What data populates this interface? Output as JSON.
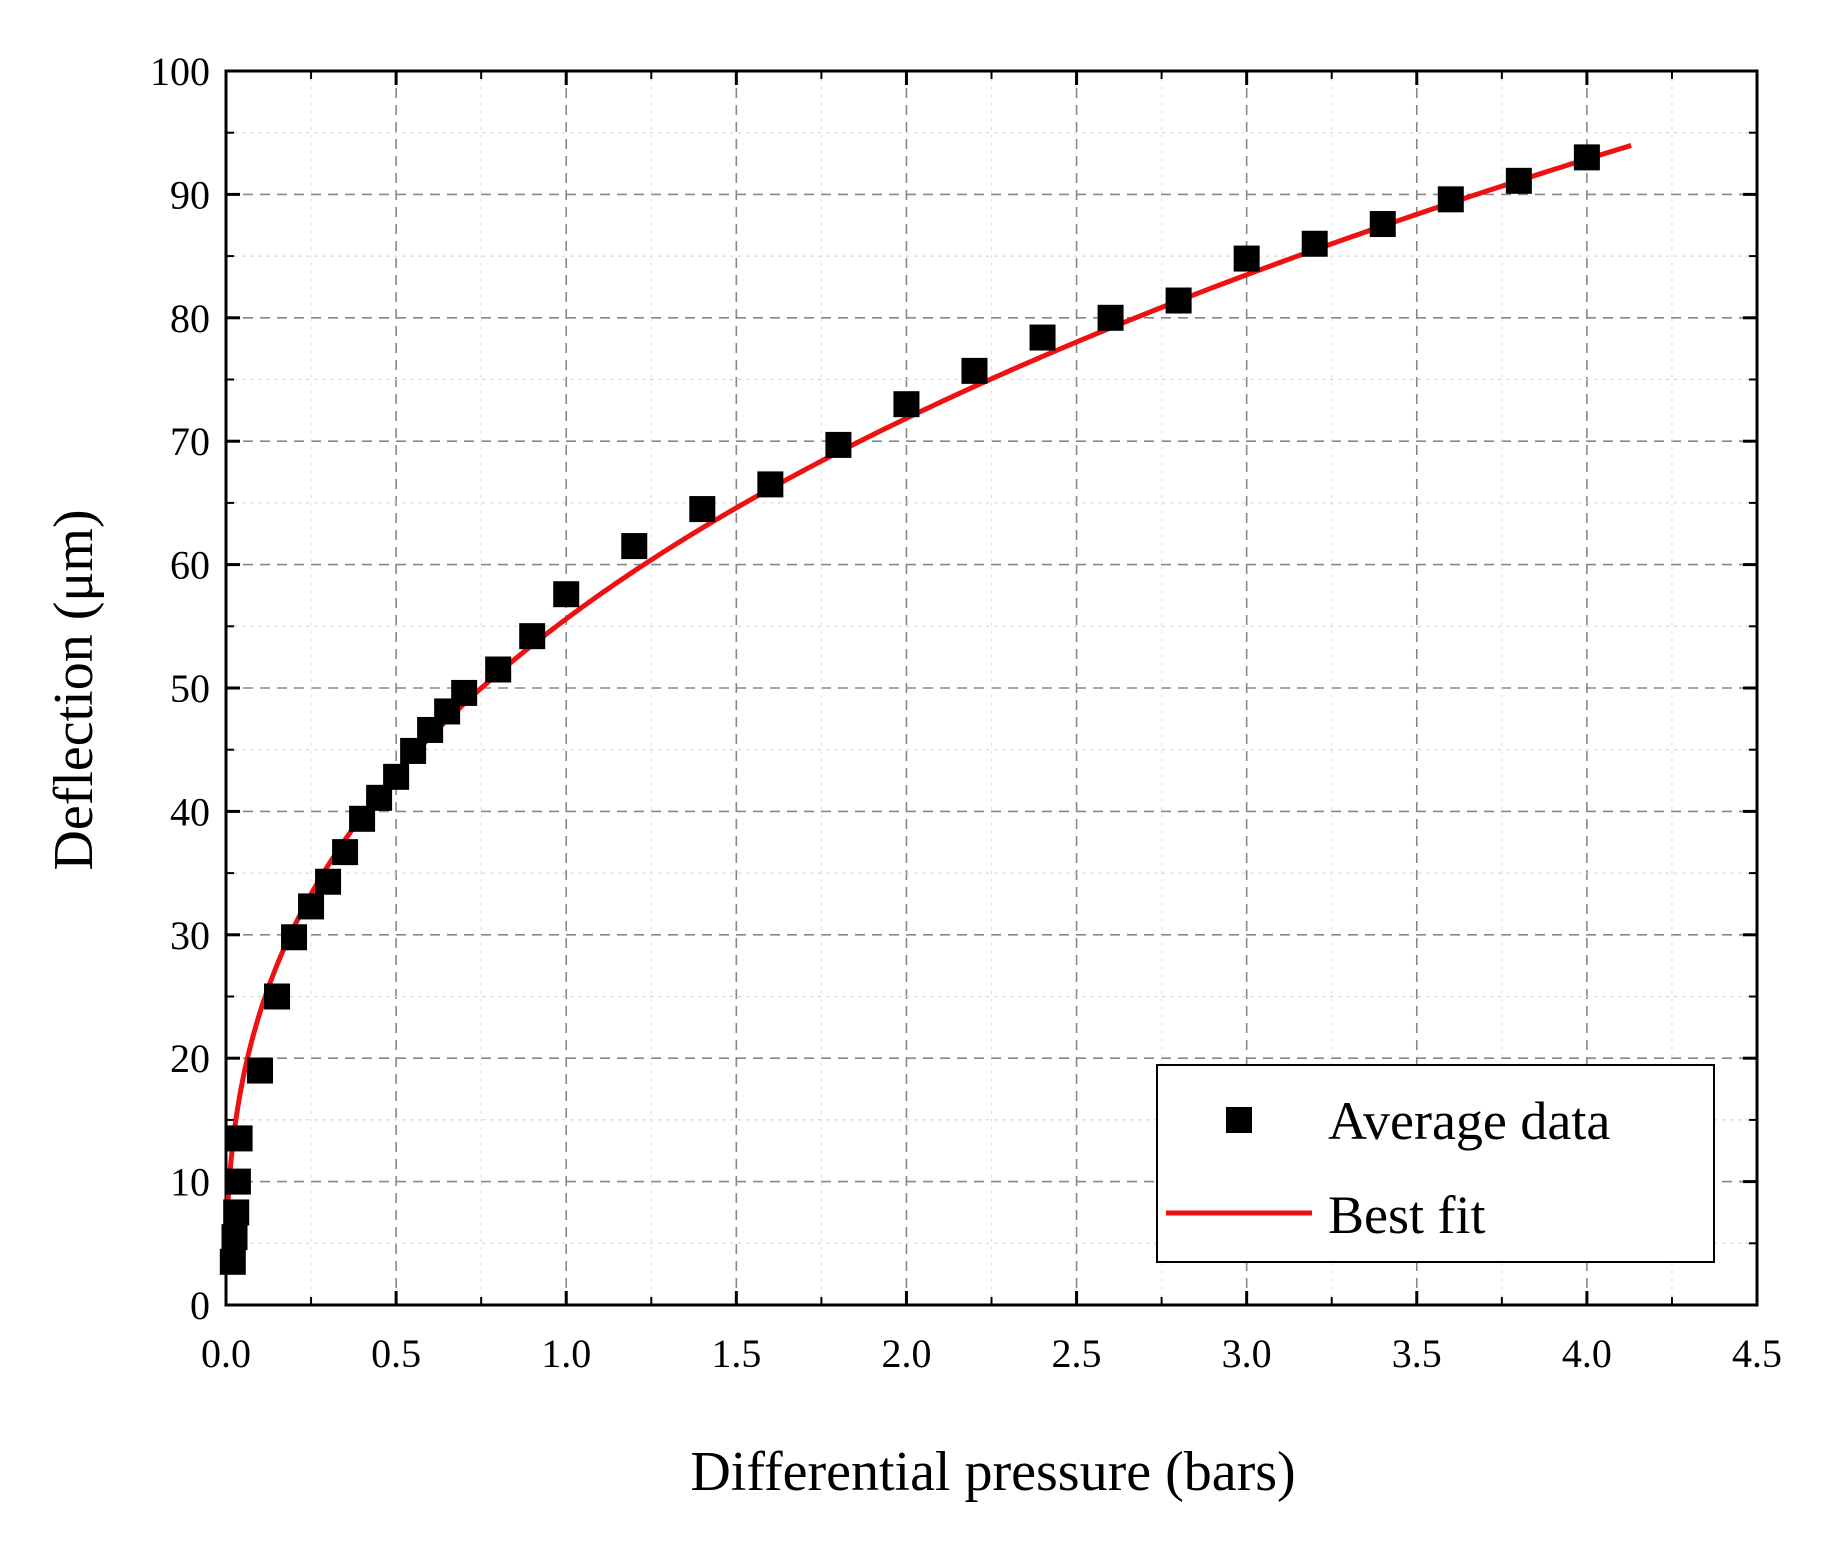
{
  "chart_data": {
    "type": "scatter",
    "title": "",
    "xlabel": "Differential pressure (bars)",
    "ylabel": "Deflection (μm)",
    "xlim": [
      0,
      4.5
    ],
    "ylim": [
      0,
      100
    ],
    "x_ticks": [
      "0.0",
      "0.5",
      "1.0",
      "1.5",
      "2.0",
      "2.5",
      "3.0",
      "3.5",
      "4.0",
      "4.5"
    ],
    "x_tick_values": [
      0,
      0.5,
      1.0,
      1.5,
      2.0,
      2.5,
      3.0,
      3.5,
      4.0,
      4.5
    ],
    "y_ticks": [
      "0",
      "10",
      "20",
      "30",
      "40",
      "50",
      "60",
      "70",
      "80",
      "90",
      "100"
    ],
    "y_tick_values": [
      0,
      10,
      20,
      30,
      40,
      50,
      60,
      70,
      80,
      90,
      100
    ],
    "grid": true,
    "legend_position": "bottom-right",
    "series": [
      {
        "name": "Average data",
        "kind": "scatter",
        "marker": "square",
        "color": "#000000",
        "x": [
          0.02,
          0.025,
          0.03,
          0.035,
          0.04,
          0.1,
          0.15,
          0.2,
          0.25,
          0.3,
          0.35,
          0.4,
          0.45,
          0.5,
          0.55,
          0.6,
          0.65,
          0.7,
          0.8,
          0.9,
          1.0,
          1.2,
          1.4,
          1.6,
          1.8,
          2.0,
          2.2,
          2.4,
          2.6,
          2.8,
          3.0,
          3.2,
          3.4,
          3.6,
          3.8,
          4.0
        ],
        "y": [
          3.5,
          5.5,
          7.5,
          10,
          13.5,
          19,
          25,
          29.8,
          32.3,
          34.3,
          36.7,
          39.4,
          41.1,
          42.8,
          44.9,
          46.6,
          48.1,
          49.6,
          51.5,
          54.2,
          57.6,
          61.5,
          64.5,
          66.5,
          69.7,
          73.0,
          75.7,
          78.4,
          80.0,
          81.4,
          84.8,
          86.0,
          87.6,
          89.6,
          91.1,
          93.0
        ]
      },
      {
        "name": "Best fit",
        "kind": "line",
        "color": "#ee1111",
        "model": "y = a * x^b",
        "a": 55.6,
        "b": 0.37,
        "x_range": [
          0.002,
          4.13
        ]
      }
    ]
  }
}
